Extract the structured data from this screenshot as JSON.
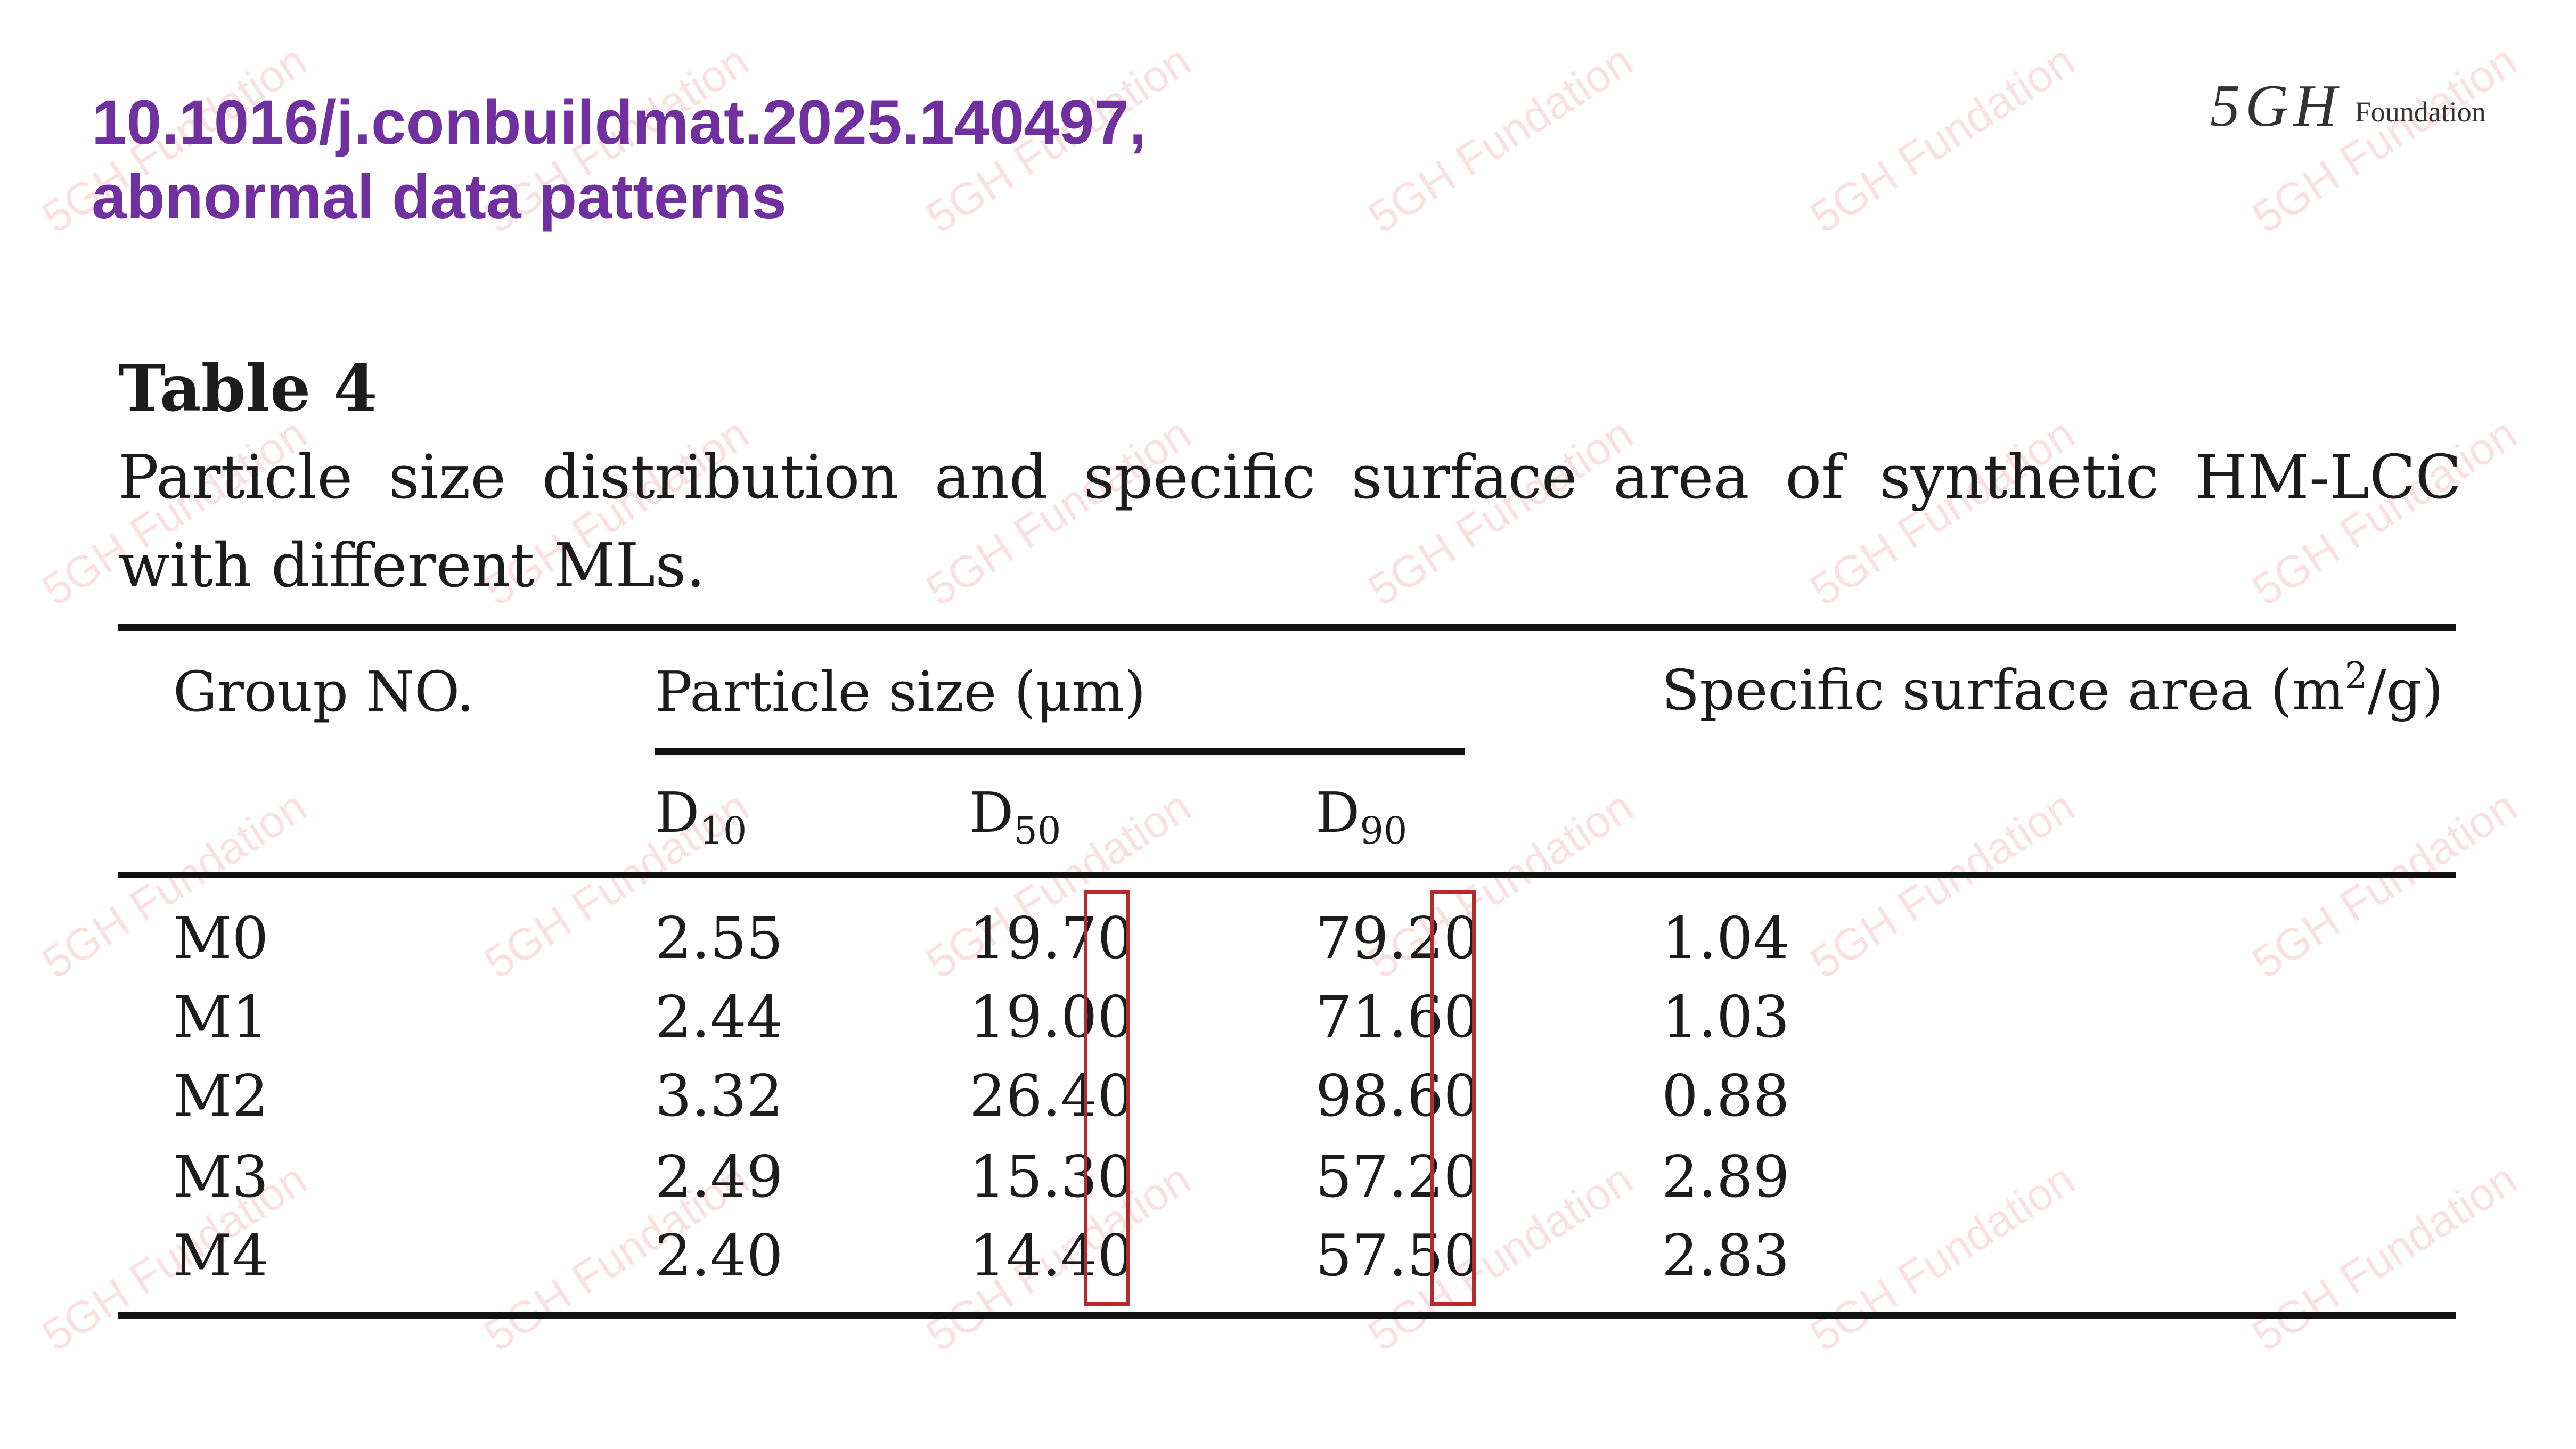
{
  "header": {
    "doi": "10.1016/j.conbuildmat.2025.140497,",
    "subtitle": "abnormal data patterns"
  },
  "logo": {
    "mark": "5GH",
    "word": "Foundation"
  },
  "watermark_text": "5GH Fundation",
  "table": {
    "label": "Table 4",
    "caption": "Particle size distribution and specific surface area of synthetic HM-LCC with different MLs.",
    "headers": {
      "group": "Group NO.",
      "particle_size": "Particle size (μm)",
      "surface_area": "Specific surface area (m",
      "surface_area_sup": "2",
      "surface_area_tail": "/g)",
      "d10_main": "D",
      "d10_sub": "10",
      "d50_main": "D",
      "d50_sub": "50",
      "d90_main": "D",
      "d90_sub": "90"
    },
    "rows": [
      {
        "group": "M0",
        "d10": "2.55",
        "d50": "19.70",
        "d90": "79.20",
        "ssa": "1.04"
      },
      {
        "group": "M1",
        "d10": "2.44",
        "d50": "19.00",
        "d90": "71.60",
        "ssa": "1.03"
      },
      {
        "group": "M2",
        "d10": "3.32",
        "d50": "26.40",
        "d90": "98.60",
        "ssa": "0.88"
      },
      {
        "group": "M3",
        "d10": "2.49",
        "d50": "15.30",
        "d90": "57.20",
        "ssa": "2.89"
      },
      {
        "group": "M4",
        "d10": "2.40",
        "d50": "14.40",
        "d90": "57.50",
        "ssa": "2.83"
      }
    ]
  },
  "highlight_color": "#b52a2a",
  "title_color": "#7030a0"
}
